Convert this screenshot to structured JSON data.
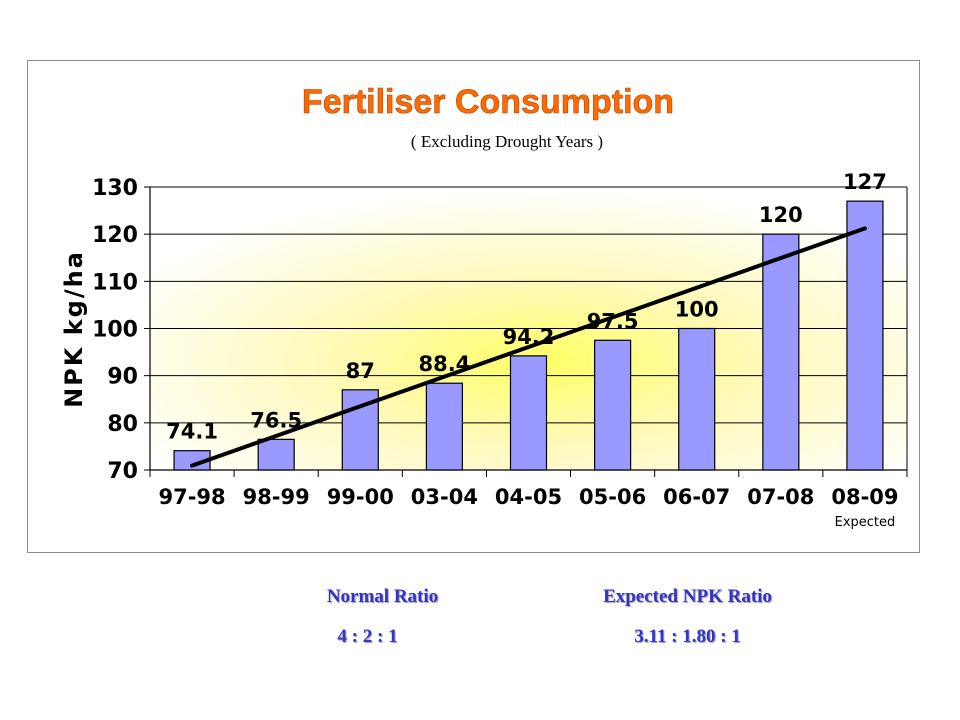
{
  "chart_data": {
    "type": "bar",
    "title": "Fertiliser Consumption",
    "subtitle": "( Excluding Drought Years )",
    "ylabel": "NPK kg/ha",
    "xlabel": "",
    "categories": [
      "97-98",
      "98-99",
      "99-00",
      "03-04",
      "04-05",
      "05-06",
      "06-07",
      "07-08",
      "08-09"
    ],
    "category_notes": [
      "",
      "",
      "",
      "",
      "",
      "",
      "",
      "",
      "Expected"
    ],
    "values": [
      74.1,
      76.5,
      87,
      88.4,
      94.2,
      97.5,
      100,
      120,
      127
    ],
    "data_labels": [
      "74.1",
      "76.5",
      "87",
      "88.4",
      "94.2",
      "97.5",
      "100",
      "120",
      "127"
    ],
    "ylim": [
      70,
      130
    ],
    "yticks": [
      70,
      80,
      90,
      100,
      110,
      120,
      130
    ],
    "grid": true,
    "trendline": true,
    "colors": {
      "bar": "#9999ff",
      "bar_edge": "#000000",
      "title": "#ff6a00",
      "ratio_text": "#3333cc"
    }
  },
  "ratios": {
    "normal": {
      "title": "Normal Ratio",
      "value": "4  :  2  :  1"
    },
    "expected": {
      "title": "Expected NPK Ratio",
      "value": "3.11  :  1.80  :  1"
    }
  }
}
